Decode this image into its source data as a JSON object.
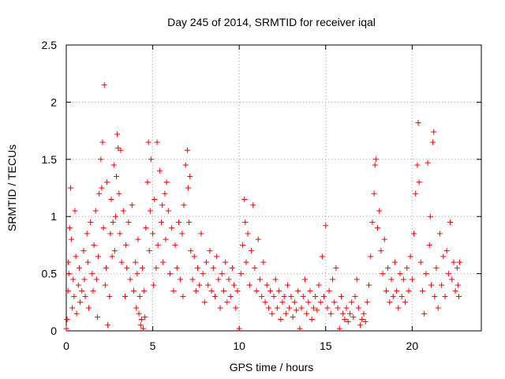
{
  "chart_data": {
    "type": "scatter",
    "title": "Day 245 of 2014, SRMTID for receiver iqal",
    "xlabel": "GPS time / hours",
    "ylabel": "SRMTID / TECUs",
    "xlim": [
      0,
      24
    ],
    "ylim": [
      0,
      2.5
    ],
    "xticks": [
      0,
      5,
      10,
      15,
      20
    ],
    "xtick_labels": [
      "0",
      "5",
      "10",
      "15",
      "20"
    ],
    "yticks": [
      0,
      0.5,
      1,
      1.5,
      2,
      2.5
    ],
    "ytick_labels": [
      "0",
      "0.5",
      "1",
      "1.5",
      "2",
      "2.5"
    ],
    "grid": true,
    "marker": "+",
    "color": "#ff0000",
    "series": [
      {
        "name": "SRMTID",
        "points": [
          [
            0.0,
            0.02
          ],
          [
            0.05,
            0.1
          ],
          [
            0.1,
            0.35
          ],
          [
            0.12,
            0.6
          ],
          [
            0.15,
            0.5
          ],
          [
            0.2,
            0.9
          ],
          [
            0.25,
            1.25
          ],
          [
            0.3,
            0.8
          ],
          [
            0.35,
            0.2
          ],
          [
            0.4,
            0.45
          ],
          [
            0.45,
            0.3
          ],
          [
            0.5,
            1.05
          ],
          [
            0.55,
            0.65
          ],
          [
            0.6,
            0.15
          ],
          [
            0.7,
            0.4
          ],
          [
            0.75,
            0.55
          ],
          [
            0.8,
            0.25
          ],
          [
            0.9,
            0.35
          ],
          [
            1.0,
            0.7
          ],
          [
            1.05,
            0.45
          ],
          [
            1.1,
            0.3
          ],
          [
            1.2,
            0.85
          ],
          [
            1.25,
            0.6
          ],
          [
            1.3,
            0.2
          ],
          [
            1.4,
            0.95
          ],
          [
            1.5,
            0.5
          ],
          [
            1.55,
            0.35
          ],
          [
            1.6,
            0.75
          ],
          [
            1.7,
            1.05
          ],
          [
            1.75,
            0.45
          ],
          [
            1.8,
            0.12
          ],
          [
            1.85,
            0.65
          ],
          [
            1.9,
            1.2
          ],
          [
            2.0,
            1.5
          ],
          [
            2.05,
            1.25
          ],
          [
            2.1,
            1.65
          ],
          [
            2.15,
            0.9
          ],
          [
            2.2,
            2.15
          ],
          [
            2.25,
            0.4
          ],
          [
            2.3,
            0.55
          ],
          [
            2.35,
            1.3
          ],
          [
            2.4,
            0.05
          ],
          [
            2.5,
            0.3
          ],
          [
            2.55,
            0.85
          ],
          [
            2.6,
            1.15
          ],
          [
            2.65,
            0.65
          ],
          [
            2.7,
            0.95
          ],
          [
            2.75,
            1.45
          ],
          [
            2.8,
            0.7
          ],
          [
            2.85,
            1.0
          ],
          [
            2.9,
            1.35
          ],
          [
            2.95,
            1.72
          ],
          [
            3.0,
            1.6
          ],
          [
            3.05,
            1.2
          ],
          [
            3.1,
            0.85
          ],
          [
            3.15,
            1.58
          ],
          [
            3.2,
            0.6
          ],
          [
            3.3,
            1.05
          ],
          [
            3.4,
            0.3
          ],
          [
            3.45,
            0.75
          ],
          [
            3.5,
            0.55
          ],
          [
            3.6,
            0.95
          ],
          [
            3.7,
            0.45
          ],
          [
            3.8,
            1.1
          ],
          [
            3.9,
            0.35
          ],
          [
            4.0,
            0.6
          ],
          [
            4.05,
            0.2
          ],
          [
            4.1,
            0.5
          ],
          [
            4.15,
            0.8
          ],
          [
            4.2,
            0.15
          ],
          [
            4.25,
            0.3
          ],
          [
            4.3,
            0.05
          ],
          [
            4.35,
            0.1
          ],
          [
            4.4,
            0.55
          ],
          [
            4.45,
            0.02
          ],
          [
            4.5,
            0.35
          ],
          [
            4.55,
            0.12
          ],
          [
            4.6,
            0.9
          ],
          [
            4.7,
            1.3
          ],
          [
            4.75,
            1.65
          ],
          [
            4.8,
            0.7
          ],
          [
            4.85,
            1.05
          ],
          [
            4.9,
            1.5
          ],
          [
            5.0,
            0.85
          ],
          [
            5.05,
            0.4
          ],
          [
            5.1,
            1.15
          ],
          [
            5.2,
            0.55
          ],
          [
            5.25,
            1.65
          ],
          [
            5.3,
            0.75
          ],
          [
            5.4,
            1.4
          ],
          [
            5.5,
            0.95
          ],
          [
            5.55,
            1.1
          ],
          [
            5.6,
            0.6
          ],
          [
            5.7,
            1.2
          ],
          [
            5.75,
            0.8
          ],
          [
            5.8,
            1.3
          ],
          [
            5.9,
            1.05
          ],
          [
            6.0,
            0.5
          ],
          [
            6.1,
            0.9
          ],
          [
            6.2,
            0.35
          ],
          [
            6.3,
            0.75
          ],
          [
            6.4,
            0.55
          ],
          [
            6.5,
            0.95
          ],
          [
            6.6,
            0.45
          ],
          [
            6.7,
            0.85
          ],
          [
            6.75,
            0.3
          ],
          [
            6.8,
            1.1
          ],
          [
            6.9,
            1.45
          ],
          [
            7.0,
            1.58
          ],
          [
            7.05,
            1.25
          ],
          [
            7.1,
            0.95
          ],
          [
            7.15,
            1.35
          ],
          [
            7.2,
            0.7
          ],
          [
            7.3,
            0.45
          ],
          [
            7.4,
            0.65
          ],
          [
            7.5,
            0.35
          ],
          [
            7.6,
            0.55
          ],
          [
            7.7,
            0.4
          ],
          [
            7.8,
            0.85
          ],
          [
            7.9,
            0.5
          ],
          [
            8.0,
            0.25
          ],
          [
            8.1,
            0.6
          ],
          [
            8.2,
            0.4
          ],
          [
            8.3,
            0.7
          ],
          [
            8.4,
            0.35
          ],
          [
            8.5,
            0.55
          ],
          [
            8.6,
            0.3
          ],
          [
            8.7,
            0.65
          ],
          [
            8.8,
            0.45
          ],
          [
            8.9,
            0.2
          ],
          [
            9.0,
            0.5
          ],
          [
            9.1,
            0.35
          ],
          [
            9.2,
            0.6
          ],
          [
            9.3,
            0.25
          ],
          [
            9.4,
            0.45
          ],
          [
            9.5,
            0.3
          ],
          [
            9.6,
            0.55
          ],
          [
            9.7,
            0.4
          ],
          [
            9.8,
            0.2
          ],
          [
            9.9,
            0.35
          ],
          [
            10.0,
            0.02
          ],
          [
            10.1,
            0.5
          ],
          [
            10.2,
            0.75
          ],
          [
            10.3,
            1.15
          ],
          [
            10.35,
            0.95
          ],
          [
            10.4,
            0.6
          ],
          [
            10.5,
            0.85
          ],
          [
            10.6,
            0.4
          ],
          [
            10.7,
            0.7
          ],
          [
            10.8,
            1.1
          ],
          [
            10.9,
            0.55
          ],
          [
            11.0,
            0.35
          ],
          [
            11.1,
            0.8
          ],
          [
            11.2,
            0.45
          ],
          [
            11.3,
            0.3
          ],
          [
            11.4,
            0.6
          ],
          [
            11.5,
            0.25
          ],
          [
            11.6,
            0.4
          ],
          [
            11.7,
            0.2
          ],
          [
            11.8,
            0.35
          ],
          [
            11.9,
            0.15
          ],
          [
            12.0,
            0.3
          ],
          [
            12.1,
            0.45
          ],
          [
            12.2,
            0.2
          ],
          [
            12.3,
            0.35
          ],
          [
            12.4,
            0.1
          ],
          [
            12.5,
            0.25
          ],
          [
            12.6,
            0.3
          ],
          [
            12.7,
            0.15
          ],
          [
            12.8,
            0.4
          ],
          [
            12.9,
            0.2
          ],
          [
            13.0,
            0.3
          ],
          [
            13.1,
            0.12
          ],
          [
            13.2,
            0.25
          ],
          [
            13.3,
            0.18
          ],
          [
            13.4,
            0.35
          ],
          [
            13.5,
            0.02
          ],
          [
            13.6,
            0.2
          ],
          [
            13.7,
            0.3
          ],
          [
            13.8,
            0.45
          ],
          [
            13.9,
            0.15
          ],
          [
            14.0,
            0.25
          ],
          [
            14.1,
            0.35
          ],
          [
            14.2,
            0.1
          ],
          [
            14.3,
            0.2
          ],
          [
            14.4,
            0.3
          ],
          [
            14.5,
            0.18
          ],
          [
            14.6,
            0.4
          ],
          [
            14.7,
            0.25
          ],
          [
            14.8,
            0.65
          ],
          [
            14.9,
            0.3
          ],
          [
            15.0,
            0.92
          ],
          [
            15.1,
            0.2
          ],
          [
            15.2,
            0.35
          ],
          [
            15.3,
            0.15
          ],
          [
            15.4,
            0.45
          ],
          [
            15.5,
            0.25
          ],
          [
            15.6,
            0.55
          ],
          [
            15.7,
            0.2
          ],
          [
            15.8,
            0.02
          ],
          [
            15.9,
            0.3
          ],
          [
            16.0,
            0.15
          ],
          [
            16.1,
            0.1
          ],
          [
            16.2,
            0.2
          ],
          [
            16.3,
            0.08
          ],
          [
            16.4,
            0.15
          ],
          [
            16.5,
            0.25
          ],
          [
            16.6,
            0.12
          ],
          [
            16.7,
            0.3
          ],
          [
            16.8,
            0.45
          ],
          [
            16.9,
            0.2
          ],
          [
            17.0,
            0.05
          ],
          [
            17.1,
            0.1
          ],
          [
            17.2,
            0.15
          ],
          [
            17.3,
            0.08
          ],
          [
            17.4,
            0.25
          ],
          [
            17.5,
            0.4
          ],
          [
            17.6,
            0.65
          ],
          [
            17.7,
            0.95
          ],
          [
            17.8,
            1.2
          ],
          [
            17.85,
            1.45
          ],
          [
            17.9,
            1.5
          ],
          [
            18.0,
            0.9
          ],
          [
            18.1,
            1.05
          ],
          [
            18.2,
            0.7
          ],
          [
            18.3,
            0.5
          ],
          [
            18.4,
            0.8
          ],
          [
            18.5,
            0.35
          ],
          [
            18.6,
            0.55
          ],
          [
            18.7,
            0.25
          ],
          [
            18.8,
            0.45
          ],
          [
            18.9,
            0.3
          ],
          [
            19.0,
            0.6
          ],
          [
            19.1,
            0.35
          ],
          [
            19.2,
            0.2
          ],
          [
            19.3,
            0.5
          ],
          [
            19.4,
            0.3
          ],
          [
            19.5,
            0.45
          ],
          [
            19.6,
            0.25
          ],
          [
            19.7,
            0.55
          ],
          [
            19.8,
            0.35
          ],
          [
            19.9,
            0.65
          ],
          [
            20.0,
            0.45
          ],
          [
            20.1,
            0.85
          ],
          [
            20.2,
            1.2
          ],
          [
            20.3,
            1.45
          ],
          [
            20.35,
            1.82
          ],
          [
            20.4,
            1.3
          ],
          [
            20.5,
            0.6
          ],
          [
            20.6,
            0.35
          ],
          [
            20.7,
            0.15
          ],
          [
            20.8,
            0.5
          ],
          [
            20.9,
            1.47
          ],
          [
            21.0,
            0.75
          ],
          [
            21.05,
            1.0
          ],
          [
            21.1,
            0.4
          ],
          [
            21.2,
            1.65
          ],
          [
            21.25,
            1.74
          ],
          [
            21.3,
            0.3
          ],
          [
            21.4,
            0.55
          ],
          [
            21.5,
            0.2
          ],
          [
            21.6,
            0.85
          ],
          [
            21.7,
            0.4
          ],
          [
            21.8,
            0.65
          ],
          [
            21.9,
            0.3
          ],
          [
            22.0,
            0.7
          ],
          [
            22.1,
            0.5
          ],
          [
            22.2,
            0.95
          ],
          [
            22.3,
            0.45
          ],
          [
            22.4,
            0.6
          ],
          [
            22.5,
            0.35
          ],
          [
            22.6,
            0.55
          ],
          [
            22.65,
            0.4
          ],
          [
            22.7,
            0.3
          ],
          [
            22.75,
            0.6
          ]
        ]
      }
    ]
  }
}
